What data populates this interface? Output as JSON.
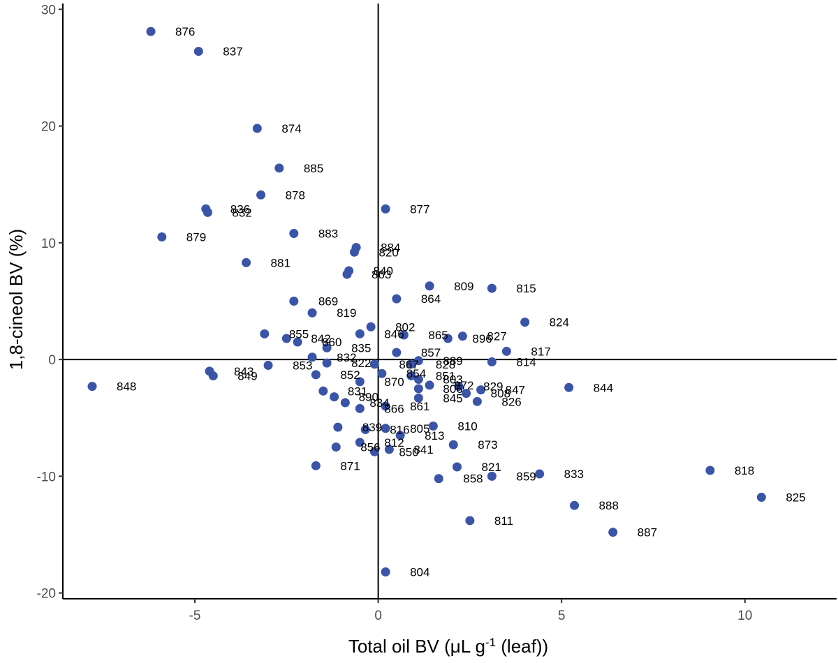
{
  "chart_data": {
    "type": "scatter",
    "title": "",
    "xlabel_main": "Total oil BV (μL g",
    "xlabel_sup": "-1",
    "xlabel_tail": " (leaf))",
    "ylabel": "1,8-cineol BV (%)",
    "xlim": [
      -8.6,
      12.5
    ],
    "ylim": [
      -20.5,
      30.5
    ],
    "xticks": [
      -5,
      0,
      5,
      10
    ],
    "yticks": [
      -20,
      -10,
      0,
      10,
      20,
      30
    ],
    "grid": false,
    "reference_lines": {
      "x": 0,
      "y": 0
    },
    "point_color": "#3a54a8",
    "points": [
      {
        "label": "876",
        "x": -6.2,
        "y": 28.1
      },
      {
        "label": "837",
        "x": -4.9,
        "y": 26.4
      },
      {
        "label": "874",
        "x": -3.3,
        "y": 19.8
      },
      {
        "label": "885",
        "x": -2.7,
        "y": 16.4
      },
      {
        "label": "878",
        "x": -3.2,
        "y": 14.1
      },
      {
        "label": "836",
        "x": -4.7,
        "y": 12.9
      },
      {
        "label": "832",
        "x": -4.65,
        "y": 12.6
      },
      {
        "label": "877",
        "x": 0.2,
        "y": 12.9
      },
      {
        "label": "879",
        "x": -5.9,
        "y": 10.5
      },
      {
        "label": "883",
        "x": -2.3,
        "y": 10.8
      },
      {
        "label": "884",
        "x": -0.6,
        "y": 9.6
      },
      {
        "label": "820",
        "x": -0.65,
        "y": 9.2
      },
      {
        "label": "881",
        "x": -3.6,
        "y": 8.3
      },
      {
        "label": "840",
        "x": -0.8,
        "y": 7.6
      },
      {
        "label": "863",
        "x": -0.85,
        "y": 7.3
      },
      {
        "label": "809",
        "x": 1.4,
        "y": 6.3
      },
      {
        "label": "815",
        "x": 3.1,
        "y": 6.1
      },
      {
        "label": "864",
        "x": 0.5,
        "y": 5.2
      },
      {
        "label": "869",
        "x": -2.3,
        "y": 5.0
      },
      {
        "label": "819",
        "x": -1.8,
        "y": 4.0
      },
      {
        "label": "824",
        "x": 4.0,
        "y": 3.2
      },
      {
        "label": "802",
        "x": -0.2,
        "y": 2.8
      },
      {
        "label": "846",
        "x": -0.5,
        "y": 2.2
      },
      {
        "label": "865",
        "x": 0.7,
        "y": 2.1
      },
      {
        "label": "827",
        "x": 2.3,
        "y": 2.0
      },
      {
        "label": "896",
        "x": 1.9,
        "y": 1.8
      },
      {
        "label": "855",
        "x": -3.1,
        "y": 2.2
      },
      {
        "label": "842",
        "x": -2.5,
        "y": 1.8
      },
      {
        "label": "860",
        "x": -2.2,
        "y": 1.5
      },
      {
        "label": "835",
        "x": -1.4,
        "y": 1.0
      },
      {
        "label": "817",
        "x": 3.5,
        "y": 0.7
      },
      {
        "label": "857",
        "x": 0.5,
        "y": 0.6
      },
      {
        "label": "814",
        "x": 3.1,
        "y": -0.2
      },
      {
        "label": "853",
        "x": -3.0,
        "y": -0.5
      },
      {
        "label": "843",
        "x": -4.6,
        "y": -1.0
      },
      {
        "label": "849",
        "x": -4.5,
        "y": -1.4
      },
      {
        "label": "848",
        "x": -7.8,
        "y": -2.3
      },
      {
        "label": "844",
        "x": 5.2,
        "y": -2.4
      },
      {
        "label": "832b",
        "x": -1.8,
        "y": 0.2
      },
      {
        "label": "822",
        "x": -1.4,
        "y": -0.3
      },
      {
        "label": "867",
        "x": -0.1,
        "y": -0.4
      },
      {
        "label": "828",
        "x": 0.9,
        "y": -0.4
      },
      {
        "label": "889",
        "x": 1.1,
        "y": -0.1
      },
      {
        "label": "852",
        "x": -1.7,
        "y": -1.3
      },
      {
        "label": "851",
        "x": 0.9,
        "y": -1.4
      },
      {
        "label": "803",
        "x": 1.1,
        "y": -1.7
      },
      {
        "label": "870",
        "x": -0.5,
        "y": -1.9
      },
      {
        "label": "854",
        "x": 0.1,
        "y": -1.2
      },
      {
        "label": "829",
        "x": 2.2,
        "y": -2.3
      },
      {
        "label": "872",
        "x": 1.4,
        "y": -2.2
      },
      {
        "label": "806",
        "x": 1.1,
        "y": -2.5
      },
      {
        "label": "831",
        "x": -1.5,
        "y": -2.7
      },
      {
        "label": "847",
        "x": 2.8,
        "y": -2.6
      },
      {
        "label": "808",
        "x": 2.4,
        "y": -2.9
      },
      {
        "label": "890",
        "x": -1.2,
        "y": -3.2
      },
      {
        "label": "845",
        "x": 1.1,
        "y": -3.3
      },
      {
        "label": "826",
        "x": 2.7,
        "y": -3.6
      },
      {
        "label": "834",
        "x": -0.9,
        "y": -3.7
      },
      {
        "label": "866",
        "x": -0.5,
        "y": -4.2
      },
      {
        "label": "861",
        "x": 0.2,
        "y": -4.0
      },
      {
        "label": "810",
        "x": 1.5,
        "y": -5.7
      },
      {
        "label": "839",
        "x": -1.1,
        "y": -5.8
      },
      {
        "label": "816",
        "x": -0.35,
        "y": -6.0
      },
      {
        "label": "805",
        "x": 0.2,
        "y": -5.9
      },
      {
        "label": "813",
        "x": 0.6,
        "y": -6.5
      },
      {
        "label": "812",
        "x": -0.5,
        "y": -7.1
      },
      {
        "label": "873",
        "x": 2.05,
        "y": -7.3
      },
      {
        "label": "856",
        "x": -1.15,
        "y": -7.5
      },
      {
        "label": "841",
        "x": 0.3,
        "y": -7.7
      },
      {
        "label": "850",
        "x": -0.1,
        "y": -7.9
      },
      {
        "label": "871",
        "x": -1.7,
        "y": -9.1
      },
      {
        "label": "821",
        "x": 2.15,
        "y": -9.2
      },
      {
        "label": "858",
        "x": 1.65,
        "y": -10.2
      },
      {
        "label": "859",
        "x": 3.1,
        "y": -10.0
      },
      {
        "label": "833",
        "x": 4.4,
        "y": -9.8
      },
      {
        "label": "818",
        "x": 9.05,
        "y": -9.5
      },
      {
        "label": "825",
        "x": 10.45,
        "y": -11.8
      },
      {
        "label": "888",
        "x": 5.35,
        "y": -12.5
      },
      {
        "label": "811",
        "x": 2.5,
        "y": -13.8
      },
      {
        "label": "887",
        "x": 6.4,
        "y": -14.8
      },
      {
        "label": "804",
        "x": 0.2,
        "y": -18.2
      }
    ]
  }
}
